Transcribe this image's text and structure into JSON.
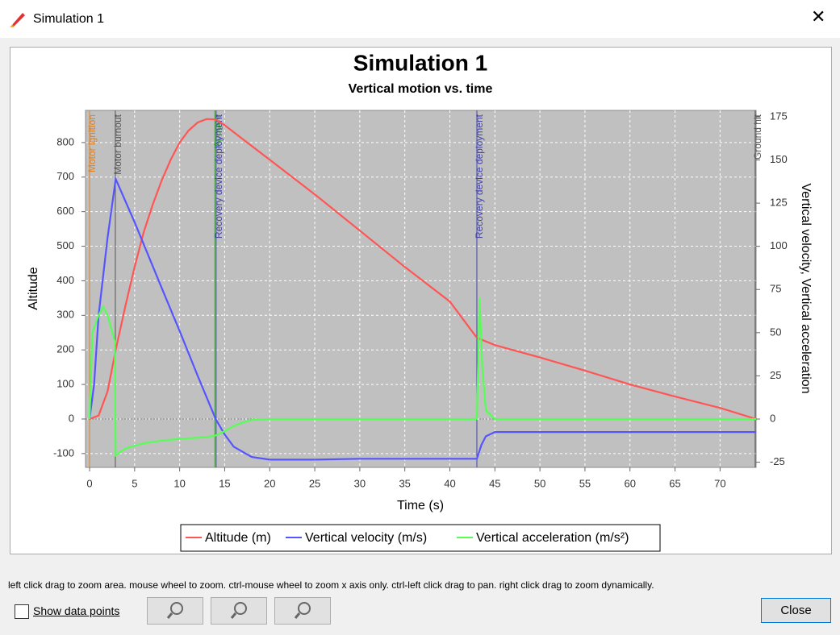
{
  "window": {
    "title": "Simulation 1",
    "hint": "left click drag to zoom area. mouse wheel to zoom. ctrl-mouse wheel to zoom x axis only. ctrl-left click drag to pan.  right click drag to zoom dynamically.",
    "checkbox": "Show data points",
    "close": "Close"
  },
  "chart_data": {
    "type": "line",
    "title": "Simulation 1",
    "subtitle": "Vertical motion vs. time",
    "x_label": "Time (s)",
    "y_label": "Altitude",
    "y2_label": "Vertical velocity, Vertical acceleration",
    "xlim": [
      -0.45,
      74
    ],
    "ylim": [
      -140,
      893
    ],
    "y2lim": [
      -28,
      178.7
    ],
    "xticks": [
      0,
      5,
      10,
      15,
      20,
      25,
      30,
      35,
      40,
      45,
      50,
      55,
      60,
      65,
      70
    ],
    "yticks": [
      -100,
      0,
      100,
      200,
      300,
      400,
      500,
      600,
      700,
      800
    ],
    "y2ticks": [
      -25,
      0,
      25,
      50,
      75,
      100,
      125,
      150,
      175
    ],
    "grid": true,
    "series": [
      {
        "name": "Altitude (m)",
        "color": "#ff5555",
        "axis": "y",
        "x": [
          0,
          1,
          2,
          2.9,
          4,
          5,
          6,
          7,
          8,
          9,
          10,
          11,
          12,
          13,
          14,
          15,
          17,
          20,
          25,
          30,
          35,
          40,
          43,
          45,
          50,
          55,
          60,
          65,
          70,
          74
        ],
        "values": [
          0,
          10,
          80,
          200,
          330,
          440,
          540,
          620,
          690,
          750,
          800,
          835,
          858,
          868,
          867,
          850,
          810,
          750,
          650,
          545,
          440,
          340,
          235,
          214,
          178,
          140,
          100,
          65,
          32,
          0
        ]
      },
      {
        "name": "Vertical velocity (m/s)",
        "color": "#5555ff",
        "axis": "y2",
        "x": [
          0,
          0.5,
          1,
          2,
          2.9,
          5,
          8,
          10,
          12,
          14,
          15,
          16,
          18,
          20,
          25,
          30,
          40,
          43,
          43.5,
          44,
          45,
          74
        ],
        "values": [
          0,
          20,
          60,
          105,
          139,
          114,
          76,
          51,
          25,
          0,
          -9,
          -16,
          -22,
          -23.5,
          -23.5,
          -23,
          -23,
          -23,
          -15,
          -10,
          -7.5,
          -7.5
        ]
      },
      {
        "name": "Vertical acceleration (m/s²)",
        "color": "#55ff55",
        "axis": "y2",
        "x": [
          0,
          0.3,
          1,
          1.5,
          2,
          2.8,
          2.9,
          4,
          6,
          8,
          10,
          13,
          14,
          15,
          16,
          17,
          18,
          20,
          43,
          43.3,
          43.6,
          44,
          45,
          74
        ],
        "values": [
          0,
          50,
          60,
          65,
          60,
          45,
          -21,
          -17,
          -14,
          -12.5,
          -11.5,
          -10.5,
          -9.5,
          -7,
          -4,
          -2,
          -0.5,
          0,
          0,
          70,
          30,
          5,
          0,
          0
        ]
      }
    ],
    "events": [
      {
        "label": "Motor ignition",
        "x": 0,
        "color": "#e08020"
      },
      {
        "label": "Motor burnout",
        "x": 2.86,
        "color": "#555555"
      },
      {
        "label": "Apogee",
        "x": 13.9,
        "color": "#33aa33"
      },
      {
        "label": "Recovery device deployment",
        "x": 14.05,
        "color": "#4444aa"
      },
      {
        "label": "Recovery device deployment",
        "x": 43,
        "color": "#4444aa"
      },
      {
        "label": "Ground hit",
        "x": 73.9,
        "color": "#555555"
      }
    ]
  }
}
